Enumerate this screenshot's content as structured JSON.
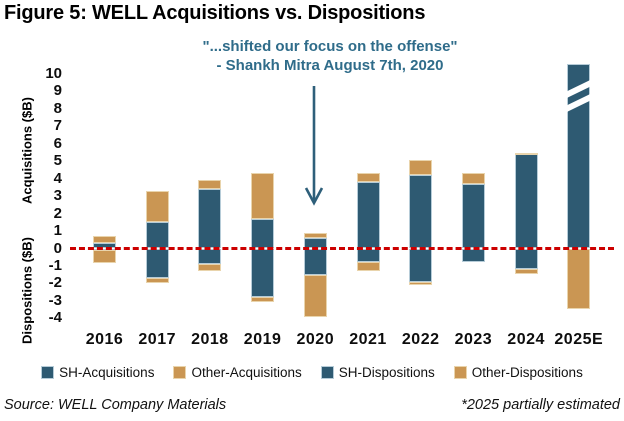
{
  "title": "Figure 5: WELL Acquisitions vs. Dispositions",
  "annotation": {
    "line1": "\"...shifted our focus on the offense\"",
    "line2": "- Shankh Mitra August 7th, 2020",
    "arrow_points_to": "2020",
    "color": "#2F6C8A"
  },
  "axes": {
    "y_top_label": "Acquisitions ($B)",
    "y_bottom_label": "Dispositions ($B)",
    "y_ticks": [
      10,
      9,
      8,
      7,
      6,
      5,
      4,
      3,
      2,
      1,
      0,
      -1,
      -2,
      -3,
      -4
    ]
  },
  "legend": [
    {
      "label": "SH-Acquisitions",
      "color": "#2E5A72",
      "border": "#B6CCD8"
    },
    {
      "label": "Other-Acquisitions",
      "color": "#CA9653",
      "border": "#E9D4AC"
    },
    {
      "label": "SH-Dispositions",
      "color": "#2E5A72",
      "border": "#B6CCD8"
    },
    {
      "label": "Other-Dispositions",
      "color": "#CA9653",
      "border": "#E9D4AC"
    }
  ],
  "footer": {
    "source": "Source: WELL Company Materials",
    "note": "*2025 partially estimated"
  },
  "colors": {
    "navy": "#2E5A72",
    "tan": "#CA9653",
    "zero_line": "#CC0000",
    "annotation_text": "#2F6C8A",
    "arrow": "#2E5F7A"
  },
  "chart_data": {
    "type": "bar",
    "stacked": true,
    "title": "WELL Acquisitions vs. Dispositions",
    "ylabel_positive": "Acquisitions ($B)",
    "ylabel_negative": "Dispositions ($B)",
    "ylim": [
      -4,
      10.7
    ],
    "grid": false,
    "zero_line": "red dashed",
    "legend_position": "bottom",
    "categories": [
      "2016",
      "2017",
      "2018",
      "2019",
      "2020",
      "2021",
      "2022",
      "2023",
      "2024",
      "2025E"
    ],
    "series": [
      {
        "name": "SH-Acquisitions",
        "color": "#2E5A72",
        "values": [
          0.3,
          1.5,
          3.4,
          1.7,
          0.6,
          3.8,
          4.2,
          3.7,
          5.4,
          10.6
        ]
      },
      {
        "name": "Other-Acquisitions",
        "color": "#CA9653",
        "values": [
          0.4,
          1.8,
          0.5,
          2.6,
          0.3,
          0.5,
          0.9,
          0.65,
          0.1,
          0
        ]
      },
      {
        "name": "SH-Dispositions",
        "color": "#2E5A72",
        "values": [
          -0.1,
          -1.7,
          -0.9,
          -2.8,
          -1.5,
          -0.8,
          -1.9,
          -0.8,
          -1.2,
          0
        ]
      },
      {
        "name": "Other-Dispositions",
        "color": "#CA9653",
        "values": [
          -0.75,
          -0.3,
          -0.4,
          -0.25,
          -2.4,
          -0.5,
          -0.2,
          0,
          -0.25,
          -3.45
        ]
      }
    ],
    "axis_break": {
      "category": "2025E",
      "series": "SH-Acquisitions",
      "note": "bar clipped at top of axis with white break marks; 2025 partially estimated"
    }
  }
}
